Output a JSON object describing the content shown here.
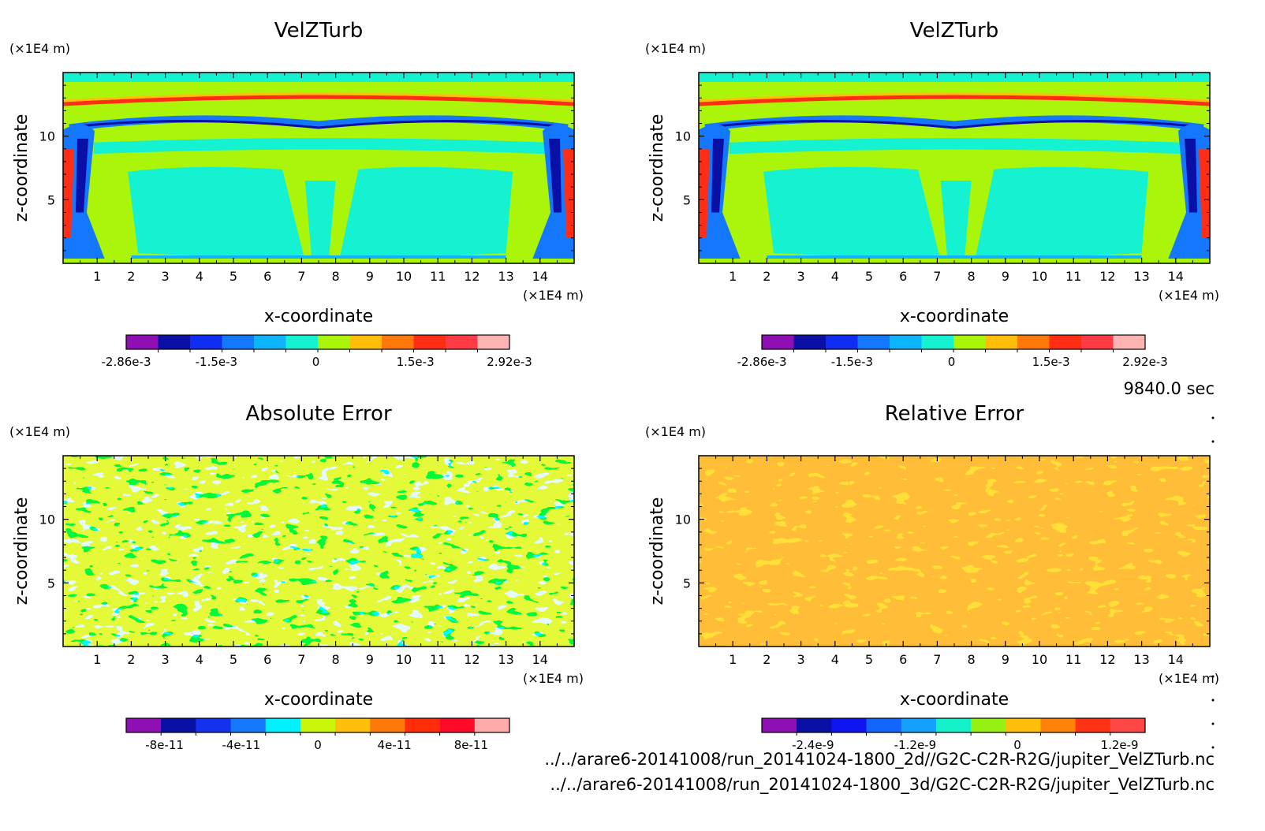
{
  "colors": {
    "velz_levels": [
      "#8e0fb3",
      "#0a0fa6",
      "#0f2ef2",
      "#1478ff",
      "#0fb4ff",
      "#14f2d2",
      "#aaf50a",
      "#ffbe0a",
      "#ff780a",
      "#ff2d14",
      "#ff3c46",
      "#ffb4b4"
    ],
    "abs_levels": [
      "#8e0fb3",
      "#0a0fa6",
      "#1432ee",
      "#1478ff",
      "#00f0ff",
      "#c8f50a",
      "#ffbe0a",
      "#ff780a",
      "#ff2d0a",
      "#ff0a28",
      "#ffaaaa"
    ],
    "rel_levels": [
      "#8e0fb3",
      "#0a0fa6",
      "#0f14f0",
      "#1464ff",
      "#14a0ff",
      "#14f0c8",
      "#96f014",
      "#ffbe0a",
      "#ff820a",
      "#ff3214",
      "#ff4646"
    ]
  },
  "annotations": {
    "time": "9840.0 sec",
    "file1": "../../arare6-20141008/run_20141024-1800_2d//G2C-C2R-R2G/jupiter_VelZTurb.nc",
    "file2": "../../arare6-20141008/run_20141024-1800_3d/G2C-C2R-R2G/jupiter_VelZTurb.nc"
  },
  "chart_data": [
    {
      "type": "heatmap",
      "title": "VelZTurb",
      "xlabel": "x-coordinate",
      "ylabel": "z-coordinate",
      "x_unit": "(×1E4 m)",
      "y_unit": "(×1E4 m)",
      "xlim": [
        0,
        15
      ],
      "ylim": [
        0,
        15
      ],
      "x_ticks": [
        "1",
        "2",
        "3",
        "4",
        "5",
        "6",
        "7",
        "8",
        "9",
        "10",
        "11",
        "12",
        "13",
        "14"
      ],
      "y_ticks": [
        "5",
        "10"
      ],
      "colorbar": {
        "vmin": -0.00286,
        "vmax": 0.00292,
        "ticks": [
          "-2.86e-3",
          "-1.5e-3",
          "0",
          "1.5e-3",
          "2.92e-3"
        ]
      },
      "grid": false
    },
    {
      "type": "heatmap",
      "title": "VelZTurb",
      "xlabel": "x-coordinate",
      "ylabel": "z-coordinate",
      "x_unit": "(×1E4 m)",
      "y_unit": "(×1E4 m)",
      "xlim": [
        0,
        15
      ],
      "ylim": [
        0,
        15
      ],
      "x_ticks": [
        "1",
        "2",
        "3",
        "4",
        "5",
        "6",
        "7",
        "8",
        "9",
        "10",
        "11",
        "12",
        "13",
        "14"
      ],
      "y_ticks": [
        "5",
        "10"
      ],
      "colorbar": {
        "vmin": -0.00286,
        "vmax": 0.00292,
        "ticks": [
          "-2.86e-3",
          "-1.5e-3",
          "0",
          "1.5e-3",
          "2.92e-3"
        ]
      },
      "grid": false
    },
    {
      "type": "heatmap",
      "title": "Absolute Error",
      "xlabel": "x-coordinate",
      "ylabel": "z-coordinate",
      "x_unit": "(×1E4 m)",
      "y_unit": "(×1E4 m)",
      "xlim": [
        0,
        15
      ],
      "ylim": [
        0,
        15
      ],
      "x_ticks": [
        "1",
        "2",
        "3",
        "4",
        "5",
        "6",
        "7",
        "8",
        "9",
        "10",
        "11",
        "12",
        "13",
        "14"
      ],
      "y_ticks": [
        "5",
        "10"
      ],
      "colorbar": {
        "vmin": -1e-10,
        "vmax": 1e-10,
        "ticks": [
          "-8e-11",
          "-4e-11",
          "0",
          "4e-11",
          "8e-11"
        ]
      },
      "grid": false
    },
    {
      "type": "heatmap",
      "title": "Relative Error",
      "xlabel": "x-coordinate",
      "ylabel": "z-coordinate",
      "x_unit": "(×1E4 m)",
      "y_unit": "(×1E4 m)",
      "xlim": [
        0,
        15
      ],
      "ylim": [
        0,
        15
      ],
      "x_ticks": [
        "1",
        "2",
        "3",
        "4",
        "5",
        "6",
        "7",
        "8",
        "9",
        "10",
        "11",
        "12",
        "13",
        "14"
      ],
      "y_ticks": [
        "5",
        "10"
      ],
      "colorbar": {
        "vmin": -3e-09,
        "vmax": 1.5e-09,
        "ticks": [
          "-2.4e-9",
          "-1.2e-9",
          "0",
          "1.2e-9"
        ]
      },
      "grid": false
    }
  ]
}
